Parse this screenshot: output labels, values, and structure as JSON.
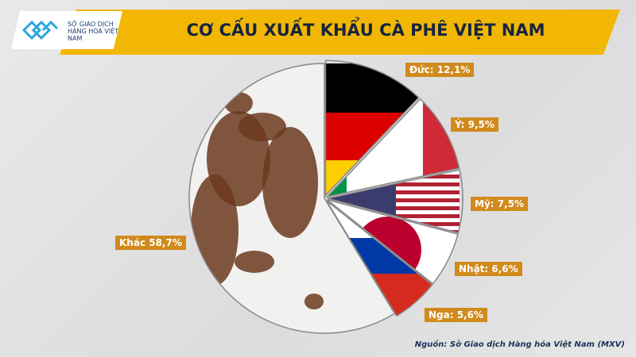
{
  "header": {
    "title": "CƠ CẤU XUẤT KHẨU CÀ PHÊ VIỆT NAM",
    "logo_text": "SỞ GIAO DỊCH HÀNG HÓA VIỆT NAM"
  },
  "chart_data": {
    "type": "pie",
    "title": "CƠ CẤU XUẤT KHẨU CÀ PHÊ VIỆT NAM",
    "start": "12 o'clock, clockwise",
    "slices": [
      {
        "name": "Đức",
        "value": 12.1,
        "label": "Đức: 12,1%",
        "fill": "flag-germany"
      },
      {
        "name": "Ý",
        "value": 9.5,
        "label": "Ý: 9,5%",
        "fill": "flag-italy"
      },
      {
        "name": "Mỹ",
        "value": 7.5,
        "label": "Mỹ: 7,5%",
        "fill": "flag-usa"
      },
      {
        "name": "Nhật",
        "value": 6.6,
        "label": "Nhật: 6,6%",
        "fill": "flag-japan"
      },
      {
        "name": "Nga",
        "value": 5.6,
        "label": "Nga: 5,6%",
        "fill": "flag-russia"
      },
      {
        "name": "Khác",
        "value": 58.7,
        "label": "Khác 58,7%",
        "fill": "coffee-world-map"
      }
    ],
    "label_color": "#d18a1c"
  },
  "source": "Nguồn: Sở Giao dịch Hàng hóa Việt Nam (MXV)"
}
